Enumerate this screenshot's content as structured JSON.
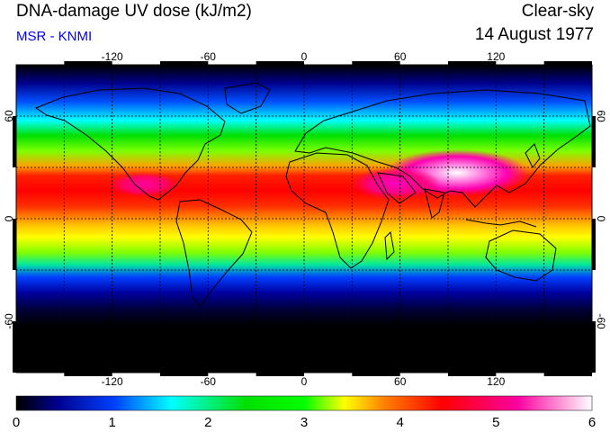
{
  "header": {
    "title": "DNA-damage UV dose (kJ/m2)",
    "source": "MSR - KNMI",
    "condition": "Clear-sky",
    "date": "14 August 1977"
  },
  "map": {
    "projection": "equirectangular",
    "lon_range": [
      -180,
      180
    ],
    "lat_range": [
      -90,
      90
    ],
    "lon_ticks": [
      "-120",
      "-60",
      "0",
      "60",
      "120"
    ],
    "lat_ticks": [
      "60",
      "0",
      "-60"
    ],
    "grid": "dashed every 30 degrees",
    "colors": {
      "0.0": "#000000",
      "0.4": "#00008c",
      "1.0": "#0040ff",
      "1.6": "#00ffff",
      "2.4": "#00e000",
      "3.0": "#00ff00",
      "3.4": "#ffff00",
      "3.8": "#ff8000",
      "4.4": "#ff0000",
      "5.2": "#ff00a0",
      "6.0": "#ffffff"
    }
  },
  "colorbar": {
    "labels": [
      "0",
      "1",
      "2",
      "3",
      "4",
      "5",
      "6"
    ],
    "min": 0,
    "max": 6
  }
}
